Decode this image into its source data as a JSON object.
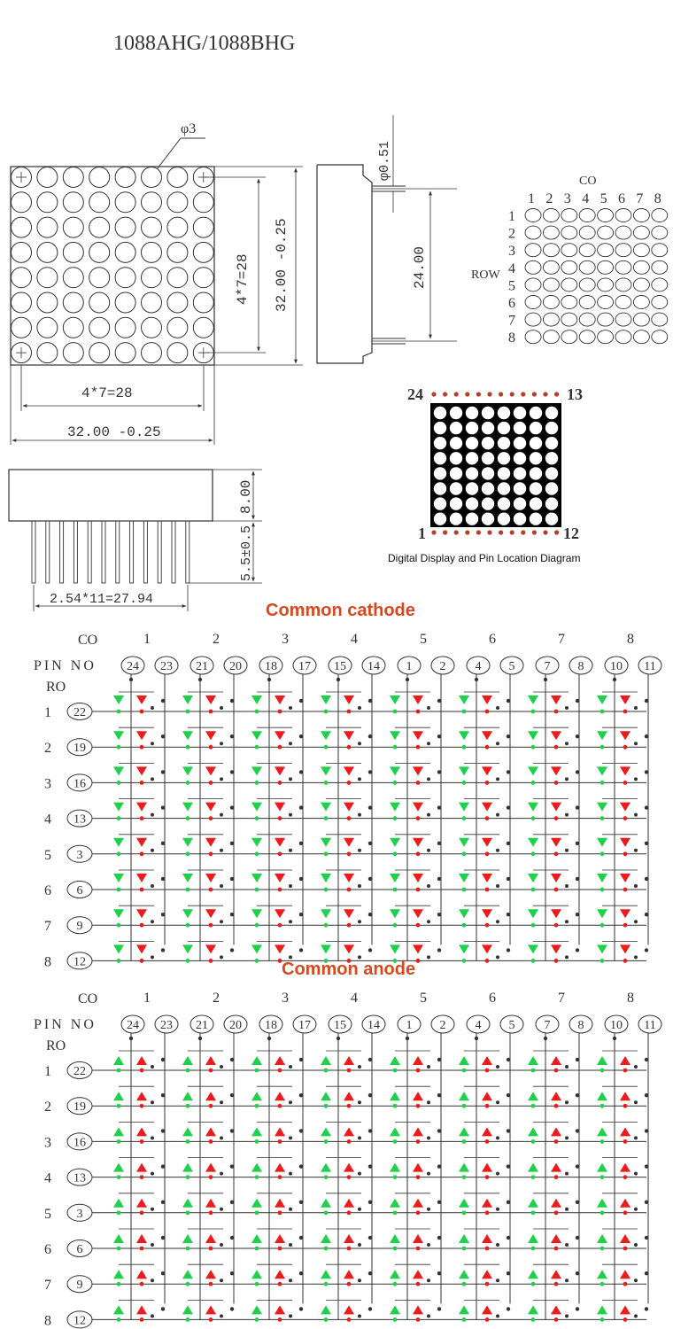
{
  "title": "1088AHG/1088BHG",
  "dimensions": {
    "hole_diameter": "φ3",
    "pin_pitch_span_front_v": "4*7=28",
    "body_size_v": "32.00  -0.25",
    "pin_pitch_span_front_h": "4*7=28",
    "body_size_h": "32.00  -0.25",
    "pin_diameter": "φ0.51",
    "pin_row_spacing": "24.00",
    "height": "8.00",
    "pin_length": "5.5±0.5",
    "pin_pitch_span_side": "2.54*11=27.94"
  },
  "matrix_labels": {
    "co": "CO",
    "row": "ROW",
    "col_numbers": [
      "1",
      "2",
      "3",
      "4",
      "5",
      "6",
      "7",
      "8"
    ],
    "row_numbers": [
      "1",
      "2",
      "3",
      "4",
      "5",
      "6",
      "7",
      "8"
    ]
  },
  "pin_diagram": {
    "top_left": "24",
    "top_right": "13",
    "bottom_left": "1",
    "bottom_right": "12",
    "caption": "Digital Display and Pin Location Diagram"
  },
  "schematics": [
    {
      "title": "Common cathode",
      "co_label": "CO",
      "pin_label": "PIN NO",
      "ro_label": "RO",
      "columns": [
        "1",
        "2",
        "3",
        "4",
        "5",
        "6",
        "7",
        "8"
      ],
      "col_pins": [
        [
          "24",
          "23"
        ],
        [
          "21",
          "20"
        ],
        [
          "18",
          "17"
        ],
        [
          "15",
          "14"
        ],
        [
          "1",
          "2"
        ],
        [
          "4",
          "5"
        ],
        [
          "7",
          "8"
        ],
        [
          "10",
          "11"
        ]
      ],
      "rows": [
        "1",
        "2",
        "3",
        "4",
        "5",
        "6",
        "7",
        "8"
      ],
      "row_pins": [
        "22",
        "19",
        "16",
        "13",
        "3",
        "6",
        "9",
        "12"
      ]
    },
    {
      "title": "Common anode",
      "co_label": "CO",
      "pin_label": "PIN NO",
      "ro_label": "RO",
      "columns": [
        "1",
        "2",
        "3",
        "4",
        "5",
        "6",
        "7",
        "8"
      ],
      "col_pins": [
        [
          "24",
          "23"
        ],
        [
          "21",
          "20"
        ],
        [
          "18",
          "17"
        ],
        [
          "15",
          "14"
        ],
        [
          "1",
          "2"
        ],
        [
          "4",
          "5"
        ],
        [
          "7",
          "8"
        ],
        [
          "10",
          "11"
        ]
      ],
      "rows": [
        "1",
        "2",
        "3",
        "4",
        "5",
        "6",
        "7",
        "8"
      ],
      "row_pins": [
        "22",
        "19",
        "16",
        "13",
        "3",
        "6",
        "9",
        "12"
      ]
    }
  ],
  "colors": {
    "title": "#b3141a",
    "section_title": "#d9481e",
    "pin_dot": "#b5402a",
    "led_green": "#1fd14a",
    "led_red": "#ee1b1b",
    "line": "#333333"
  }
}
